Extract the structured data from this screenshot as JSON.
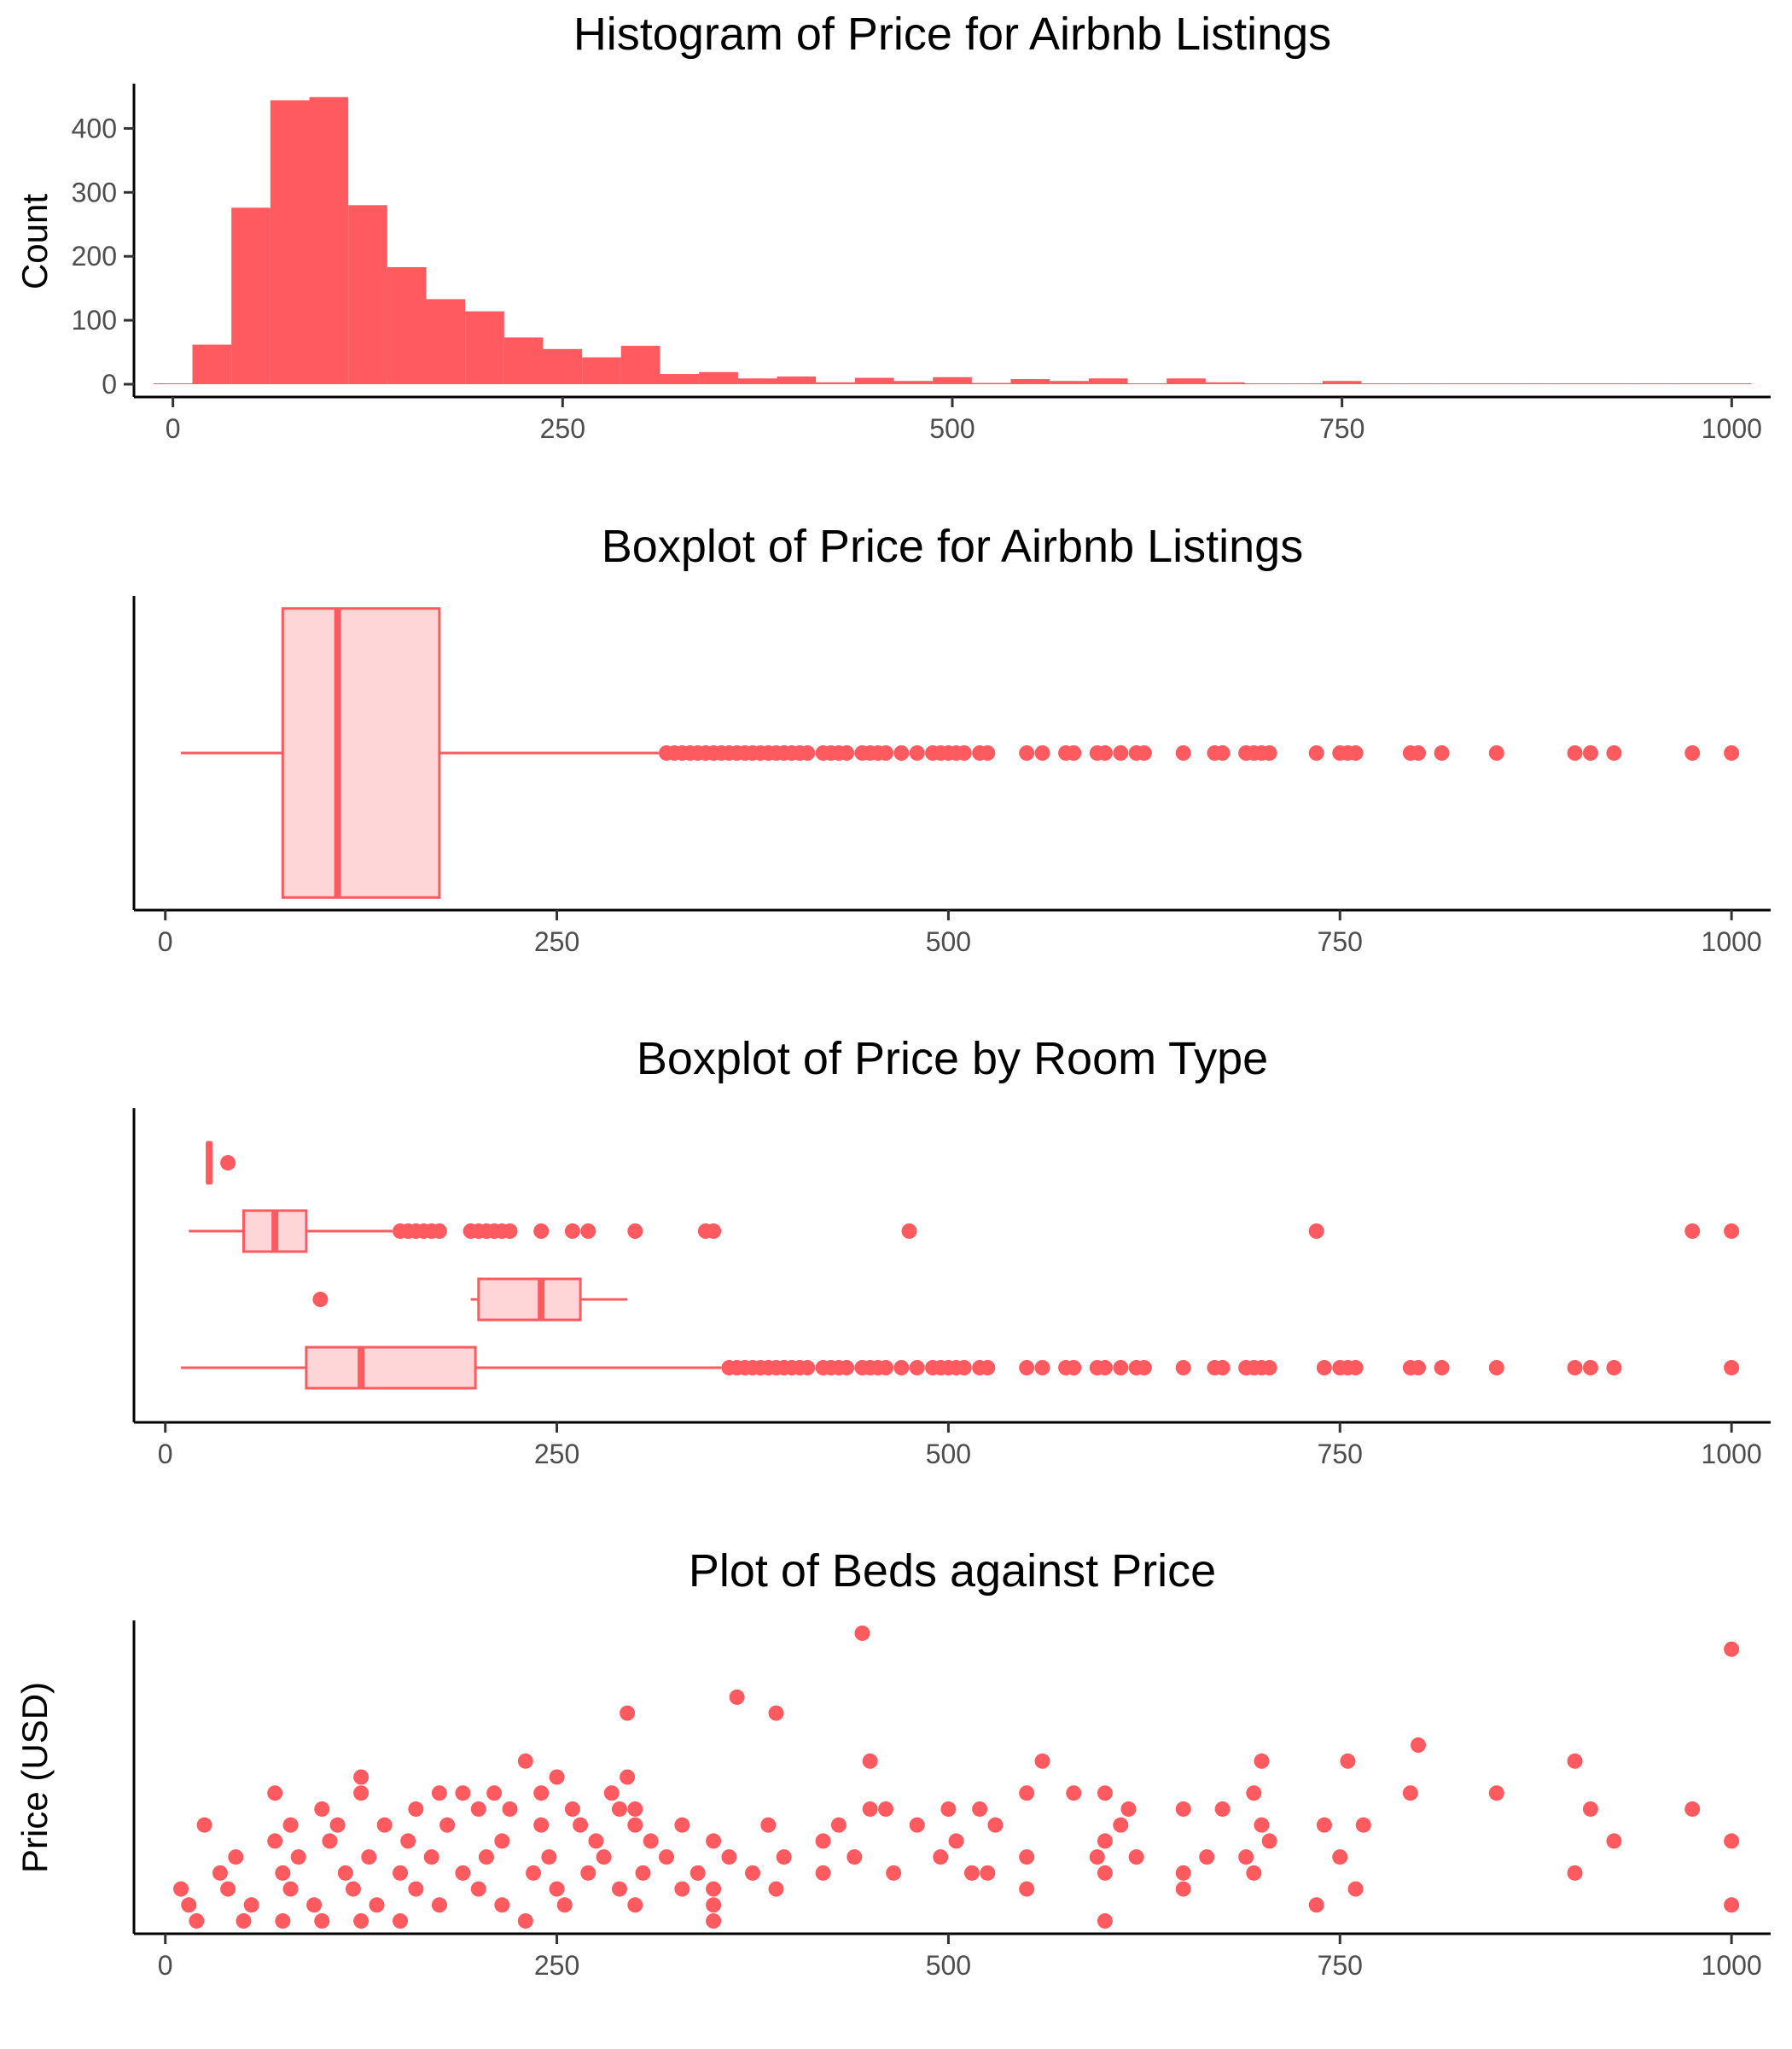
{
  "colors": {
    "accent": "#ff5a5f",
    "box_fill": "#ffd6d8",
    "axis": "#000000",
    "tick_text": "#4d4d4d"
  },
  "chart_data": [
    {
      "type": "bar",
      "title": "Histogram of Price for Airbnb Listings",
      "xlabel": "",
      "ylabel": "Count",
      "xlim": [
        -25,
        1025
      ],
      "ylim": [
        -20,
        470
      ],
      "x_ticks": [
        0,
        250,
        500,
        750,
        1000
      ],
      "y_ticks": [
        0,
        100,
        200,
        300,
        400
      ],
      "grid": false,
      "bin_width": 25,
      "bin_start": -12.5,
      "values": [
        1,
        62,
        276,
        444,
        449,
        280,
        183,
        133,
        114,
        73,
        55,
        42,
        60,
        16,
        19,
        9,
        12,
        3,
        10,
        5,
        11,
        2,
        8,
        5,
        9,
        1,
        9,
        3,
        1,
        1,
        5,
        1,
        1,
        1,
        0,
        0,
        1,
        1,
        0,
        1,
        1
      ]
    },
    {
      "type": "boxplot",
      "title": "Boxplot of Price for Airbnb Listings",
      "xlabel": "",
      "ylabel": "",
      "xlim": [
        -20,
        1025
      ],
      "x_ticks": [
        0,
        250,
        500,
        750,
        1000
      ],
      "grid": false,
      "boxes": [
        {
          "whisker_low": 10,
          "q1": 75,
          "median": 110,
          "q3": 175,
          "whisker_high": 315,
          "outliers": [
            320,
            325,
            330,
            335,
            340,
            345,
            350,
            355,
            360,
            365,
            370,
            375,
            380,
            385,
            390,
            395,
            400,
            405,
            410,
            420,
            425,
            430,
            435,
            445,
            450,
            455,
            460,
            470,
            480,
            490,
            495,
            500,
            505,
            510,
            520,
            525,
            550,
            560,
            575,
            580,
            595,
            600,
            610,
            620,
            625,
            650,
            670,
            675,
            690,
            695,
            700,
            705,
            735,
            750,
            755,
            760,
            795,
            800,
            815,
            850,
            900,
            910,
            925,
            975,
            1000
          ]
        }
      ]
    },
    {
      "type": "boxplot",
      "title": "Boxplot of Price by Room Type",
      "xlabel": "",
      "ylabel": "",
      "xlim": [
        -20,
        1025
      ],
      "x_ticks": [
        0,
        250,
        500,
        750,
        1000
      ],
      "grid": false,
      "boxes": [
        {
          "whisker_low": 27,
          "q1": 27,
          "median": 28,
          "q3": 29,
          "whisker_high": 30,
          "outliers": [
            40
          ]
        },
        {
          "whisker_low": 15,
          "q1": 50,
          "median": 70,
          "q3": 90,
          "whisker_high": 145,
          "outliers": [
            150,
            155,
            160,
            165,
            170,
            175,
            195,
            200,
            205,
            210,
            215,
            220,
            240,
            260,
            270,
            300,
            345,
            350,
            475,
            735,
            975,
            1000
          ]
        },
        {
          "whisker_low": 195,
          "q1": 200,
          "median": 240,
          "q3": 265,
          "whisker_high": 295,
          "outliers": [
            99
          ]
        },
        {
          "whisker_low": 10,
          "q1": 90,
          "median": 125,
          "q3": 198,
          "whisker_high": 355,
          "outliers": [
            360,
            365,
            370,
            375,
            380,
            385,
            390,
            395,
            400,
            405,
            410,
            420,
            425,
            430,
            435,
            445,
            450,
            455,
            460,
            470,
            480,
            490,
            495,
            500,
            505,
            510,
            520,
            525,
            550,
            560,
            575,
            580,
            595,
            600,
            610,
            620,
            625,
            650,
            670,
            675,
            690,
            695,
            700,
            705,
            740,
            750,
            755,
            760,
            795,
            800,
            815,
            850,
            900,
            910,
            925,
            1000
          ]
        }
      ]
    },
    {
      "type": "scatter",
      "title": "Plot of Beds against Price",
      "xlabel": "",
      "ylabel": "Price (USD)",
      "xlim": [
        -20,
        1025
      ],
      "ylim": [
        0.6,
        10.4
      ],
      "x_ticks": [
        0,
        250,
        500,
        750,
        1000
      ],
      "grid": false,
      "points": [
        [
          445,
          10
        ],
        [
          1000,
          9.5
        ],
        [
          365,
          8
        ],
        [
          295,
          7.5
        ],
        [
          390,
          7.5
        ],
        [
          230,
          6
        ],
        [
          450,
          6
        ],
        [
          560,
          6
        ],
        [
          700,
          6
        ],
        [
          755,
          6
        ],
        [
          800,
          6.5
        ],
        [
          900,
          6
        ],
        [
          125,
          5.5
        ],
        [
          295,
          5.5
        ],
        [
          250,
          5.5
        ],
        [
          70,
          5
        ],
        [
          125,
          5
        ],
        [
          175,
          5
        ],
        [
          190,
          5
        ],
        [
          210,
          5
        ],
        [
          240,
          5
        ],
        [
          285,
          5
        ],
        [
          550,
          5
        ],
        [
          580,
          5
        ],
        [
          600,
          5
        ],
        [
          695,
          5
        ],
        [
          795,
          5
        ],
        [
          850,
          5
        ],
        [
          100,
          4.5
        ],
        [
          160,
          4.5
        ],
        [
          200,
          4.5
        ],
        [
          220,
          4.5
        ],
        [
          260,
          4.5
        ],
        [
          290,
          4.5
        ],
        [
          300,
          4.5
        ],
        [
          450,
          4.5
        ],
        [
          460,
          4.5
        ],
        [
          500,
          4.5
        ],
        [
          520,
          4.5
        ],
        [
          650,
          4.5
        ],
        [
          675,
          4.5
        ],
        [
          615,
          4.5
        ],
        [
          910,
          4.5
        ],
        [
          975,
          4.5
        ],
        [
          25,
          4
        ],
        [
          80,
          4
        ],
        [
          110,
          4
        ],
        [
          140,
          4
        ],
        [
          180,
          4
        ],
        [
          240,
          4
        ],
        [
          265,
          4
        ],
        [
          300,
          4
        ],
        [
          330,
          4
        ],
        [
          385,
          4
        ],
        [
          430,
          4
        ],
        [
          480,
          4
        ],
        [
          530,
          4
        ],
        [
          610,
          4
        ],
        [
          700,
          4
        ],
        [
          740,
          4
        ],
        [
          765,
          4
        ],
        [
          70,
          3.5
        ],
        [
          105,
          3.5
        ],
        [
          155,
          3.5
        ],
        [
          215,
          3.5
        ],
        [
          275,
          3.5
        ],
        [
          310,
          3.5
        ],
        [
          350,
          3.5
        ],
        [
          420,
          3.5
        ],
        [
          505,
          3.5
        ],
        [
          600,
          3.5
        ],
        [
          705,
          3.5
        ],
        [
          925,
          3.5
        ],
        [
          1000,
          3.5
        ],
        [
          45,
          3
        ],
        [
          85,
          3
        ],
        [
          130,
          3
        ],
        [
          170,
          3
        ],
        [
          205,
          3
        ],
        [
          245,
          3
        ],
        [
          280,
          3
        ],
        [
          320,
          3
        ],
        [
          360,
          3
        ],
        [
          395,
          3
        ],
        [
          440,
          3
        ],
        [
          495,
          3
        ],
        [
          550,
          3
        ],
        [
          595,
          3
        ],
        [
          620,
          3
        ],
        [
          665,
          3
        ],
        [
          690,
          3
        ],
        [
          750,
          3
        ],
        [
          35,
          2.5
        ],
        [
          75,
          2.5
        ],
        [
          115,
          2.5
        ],
        [
          150,
          2.5
        ],
        [
          190,
          2.5
        ],
        [
          235,
          2.5
        ],
        [
          270,
          2.5
        ],
        [
          305,
          2.5
        ],
        [
          340,
          2.5
        ],
        [
          375,
          2.5
        ],
        [
          420,
          2.5
        ],
        [
          465,
          2.5
        ],
        [
          515,
          2.5
        ],
        [
          525,
          2.5
        ],
        [
          600,
          2.5
        ],
        [
          650,
          2.5
        ],
        [
          695,
          2.5
        ],
        [
          900,
          2.5
        ],
        [
          10,
          2
        ],
        [
          40,
          2
        ],
        [
          80,
          2
        ],
        [
          120,
          2
        ],
        [
          160,
          2
        ],
        [
          200,
          2
        ],
        [
          250,
          2
        ],
        [
          290,
          2
        ],
        [
          330,
          2
        ],
        [
          350,
          2
        ],
        [
          390,
          2
        ],
        [
          550,
          2
        ],
        [
          650,
          2
        ],
        [
          760,
          2
        ],
        [
          15,
          1.5
        ],
        [
          55,
          1.5
        ],
        [
          95,
          1.5
        ],
        [
          135,
          1.5
        ],
        [
          175,
          1.5
        ],
        [
          215,
          1.5
        ],
        [
          255,
          1.5
        ],
        [
          300,
          1.5
        ],
        [
          350,
          1.5
        ],
        [
          735,
          1.5
        ],
        [
          1000,
          1.5
        ],
        [
          20,
          1
        ],
        [
          50,
          1
        ],
        [
          75,
          1
        ],
        [
          100,
          1
        ],
        [
          125,
          1
        ],
        [
          150,
          1
        ],
        [
          230,
          1
        ],
        [
          350,
          1
        ],
        [
          600,
          1
        ]
      ]
    }
  ]
}
